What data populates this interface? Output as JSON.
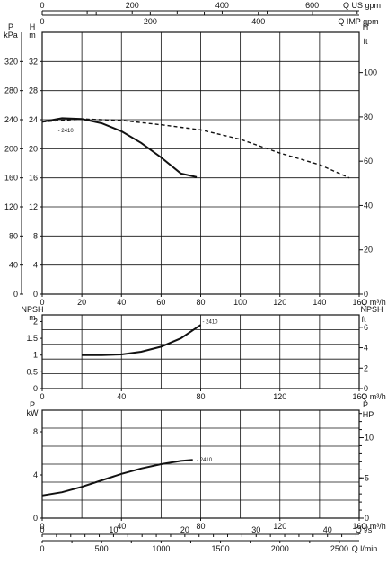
{
  "chart_data": [
    {
      "type": "line",
      "panel": "head",
      "x_unit": "Q m³/h",
      "xlim": [
        0,
        160
      ],
      "x_ticks": [
        0,
        20,
        40,
        60,
        80,
        100,
        120,
        140,
        160
      ],
      "y_left": {
        "unit": "H",
        "sub": "m",
        "lim": [
          0,
          36
        ],
        "ticks": [
          0,
          4,
          8,
          12,
          16,
          20,
          24,
          28,
          32
        ]
      },
      "y_left_outer": {
        "unit": "P",
        "sub": "kPa",
        "ticks": [
          0,
          40,
          80,
          120,
          160,
          200,
          240,
          280,
          320
        ]
      },
      "y_right": {
        "unit": "H",
        "sub": "ft",
        "ticks": [
          0,
          20,
          40,
          60,
          80,
          100
        ]
      },
      "top_axis_1": {
        "label": "Q US gpm",
        "ticks": [
          0,
          200,
          400,
          600
        ]
      },
      "top_axis_2": {
        "label": "Q IMP gpm",
        "ticks": [
          0,
          200,
          400
        ]
      },
      "series": [
        {
          "name": "2410",
          "style": "solid",
          "x": [
            0,
            10,
            20,
            30,
            40,
            50,
            60,
            70,
            78
          ],
          "y": [
            23.7,
            24.2,
            24.1,
            23.5,
            22.4,
            20.8,
            18.8,
            16.6,
            16.1
          ]
        },
        {
          "name": "",
          "style": "dashed",
          "x": [
            0,
            20,
            40,
            60,
            80,
            100,
            120,
            140,
            155
          ],
          "y": [
            23.7,
            24.1,
            23.9,
            23.3,
            22.6,
            21.3,
            19.4,
            17.8,
            16.0
          ]
        }
      ]
    },
    {
      "type": "line",
      "panel": "npsh",
      "x_unit": "Q m³/h",
      "xlim": [
        0,
        160
      ],
      "x_ticks": [
        0,
        40,
        80,
        120,
        160
      ],
      "y_left": {
        "unit": "NPSH",
        "sub": "m",
        "lim": [
          0,
          2.2
        ],
        "ticks": [
          0,
          0.5,
          1,
          1.5,
          2
        ],
        "tick_labels": [
          "0",
          "0.5",
          "1",
          "1.5",
          "2"
        ]
      },
      "y_right": {
        "unit": "NPSH",
        "sub": "ft",
        "ticks": [
          0,
          2,
          4,
          6
        ]
      },
      "series": [
        {
          "name": "2410",
          "x": [
            20,
            30,
            40,
            50,
            60,
            70,
            80
          ],
          "y": [
            1.0,
            1.0,
            1.02,
            1.1,
            1.25,
            1.5,
            1.9
          ]
        }
      ]
    },
    {
      "type": "line",
      "panel": "power",
      "x_unit": "Q m³/h",
      "xlim": [
        0,
        160
      ],
      "x_ticks": [
        0,
        40,
        80,
        120,
        160
      ],
      "y_left": {
        "unit": "P",
        "sub": "kW",
        "lim": [
          0,
          10
        ],
        "ticks": [
          0,
          4,
          8
        ]
      },
      "y_right": {
        "unit": "P",
        "sub": "HP",
        "ticks": [
          0,
          5,
          10
        ]
      },
      "bottom_axis_2": {
        "label": "Q l/s",
        "ticks": [
          0,
          10,
          20,
          30,
          40
        ]
      },
      "bottom_axis_3": {
        "label": "Q l/min",
        "ticks": [
          0,
          500,
          1000,
          1500,
          2000,
          2500
        ]
      },
      "series": [
        {
          "name": "2410",
          "x": [
            0,
            10,
            20,
            30,
            40,
            50,
            60,
            70,
            76
          ],
          "y": [
            2.1,
            2.4,
            2.9,
            3.5,
            4.1,
            4.6,
            5.0,
            5.3,
            5.4
          ]
        }
      ]
    }
  ]
}
